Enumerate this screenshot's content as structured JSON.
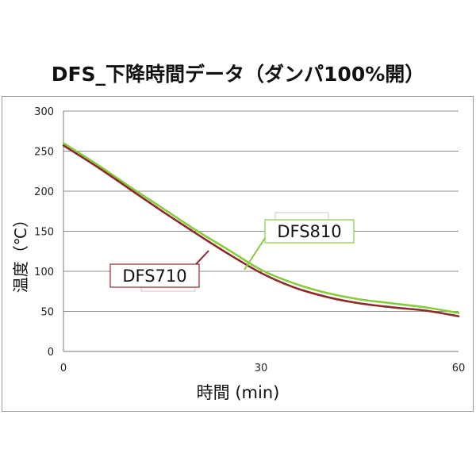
{
  "chart_data": {
    "type": "line",
    "title": "DFS_下降時間データ（ダンパ100%開）",
    "xlabel": "時間 (min)",
    "ylabel": "温度（℃）",
    "xlim": [
      0,
      60
    ],
    "ylim": [
      0,
      300
    ],
    "x_ticks": [
      "0",
      "30",
      "60"
    ],
    "y_ticks": [
      "0",
      "50",
      "100",
      "150",
      "200",
      "250",
      "300"
    ],
    "grid": "horizontal",
    "series": [
      {
        "name": "DFS710",
        "color": "#8b2a2a",
        "x": [
          0,
          5,
          10,
          15,
          20,
          25,
          30,
          35,
          40,
          45,
          50,
          55,
          60
        ],
        "y": [
          257,
          231,
          203,
          175,
          148,
          122,
          98,
          80,
          68,
          60,
          55,
          51,
          44
        ]
      },
      {
        "name": "DFS810",
        "color": "#86cc3c",
        "x": [
          0,
          5,
          10,
          15,
          20,
          25,
          30,
          35,
          40,
          45,
          50,
          55,
          60
        ],
        "y": [
          260,
          234,
          206,
          179,
          152,
          127,
          102,
          85,
          73,
          65,
          60,
          55,
          48
        ]
      }
    ]
  }
}
